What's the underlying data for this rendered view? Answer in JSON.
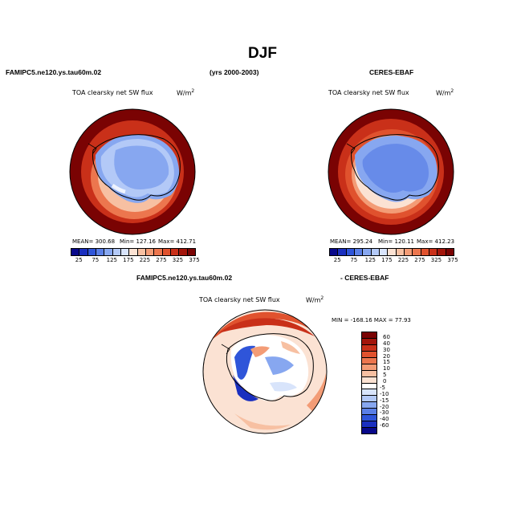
{
  "header": {
    "season": "DJF",
    "model_case": "FAMIPC5.ne120.ys.tau60m.02",
    "years": "(yrs 2000-2003)",
    "obs_name": "CERES-EBAF"
  },
  "panel_model": {
    "title": "TOA clearsky net SW flux",
    "units_base": "W/m",
    "units_exp": "2",
    "mean": "MEAN= 300.68",
    "min": "Min= 127.16",
    "max": "Max= 412.71"
  },
  "panel_obs": {
    "title": "TOA clearsky net SW flux",
    "units_base": "W/m",
    "units_exp": "2",
    "mean": "MEAN= 295.24",
    "min": "Min= 120.11",
    "max": "Max= 412.23"
  },
  "diff_header": {
    "left": "FAMIPC5.ne120.ys.tau60m.02",
    "right": "- CERES-EBAF"
  },
  "panel_diff": {
    "title": "TOA clearsky net SW flux",
    "units_base": "W/m",
    "units_exp": "2",
    "minmax": "MIN = -168.16  MAX =  77.93"
  },
  "colorbar_abs": {
    "labels": [
      "25",
      "75",
      "125",
      "175",
      "225",
      "275",
      "325",
      "375"
    ],
    "colors": [
      "#08088a",
      "#1a2fbf",
      "#2f55d9",
      "#5a7fe6",
      "#87a7f0",
      "#b3c9f7",
      "#d8e4fb",
      "#fbe2d3",
      "#f7c0a2",
      "#f39c76",
      "#ec764e",
      "#e0522e",
      "#c93019",
      "#a3150b",
      "#7a0303"
    ]
  },
  "colorbar_diff": {
    "labels": [
      "60",
      "40",
      "30",
      "20",
      "15",
      "10",
      "5",
      "0",
      "-5",
      "-10",
      "-15",
      "-20",
      "-30",
      "-40",
      "-60"
    ],
    "colors": [
      "#7a0303",
      "#a3150b",
      "#c93019",
      "#e0522e",
      "#ec764e",
      "#f39c76",
      "#f7c0a2",
      "#fbe2d3",
      "#ffffff",
      "#d8e4fb",
      "#b3c9f7",
      "#87a7f0",
      "#5a7fe6",
      "#2f55d9",
      "#1a2fbf",
      "#08088a"
    ]
  }
}
